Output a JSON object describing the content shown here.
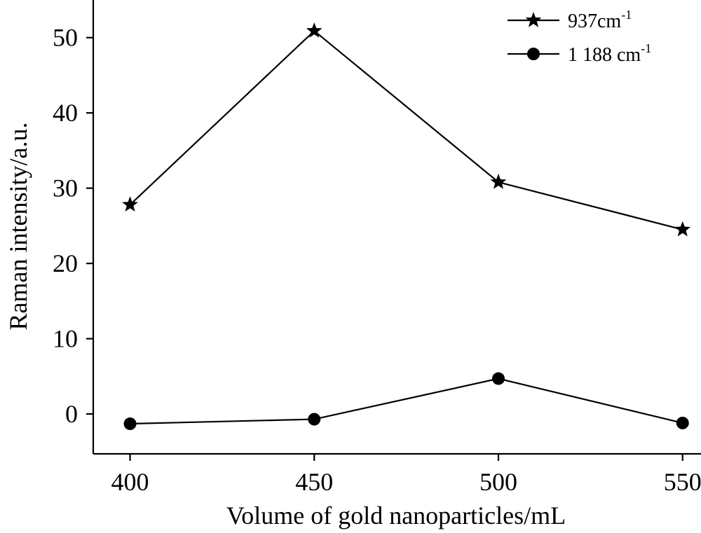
{
  "chart_data": {
    "type": "line",
    "title": "",
    "xlabel": "Volume of gold nanoparticles/mL",
    "ylabel": "Raman intensity/a.u.",
    "x": [
      400,
      450,
      500,
      550
    ],
    "xlim": [
      390,
      555
    ],
    "ylim": [
      -5.3,
      55
    ],
    "xticks": [
      400,
      450,
      500,
      550
    ],
    "yticks": [
      0,
      10,
      20,
      30,
      40,
      50
    ],
    "grid": false,
    "legend_position": "top-right",
    "series": [
      {
        "name": "937cm",
        "name_sup": "-1",
        "marker": "star",
        "color": "#000000",
        "values": [
          27.8,
          50.9,
          30.8,
          24.5
        ]
      },
      {
        "name": "1 188 cm",
        "name_sup": "-1",
        "marker": "circle",
        "color": "#000000",
        "values": [
          -1.3,
          -0.7,
          4.7,
          -1.2
        ]
      }
    ]
  }
}
